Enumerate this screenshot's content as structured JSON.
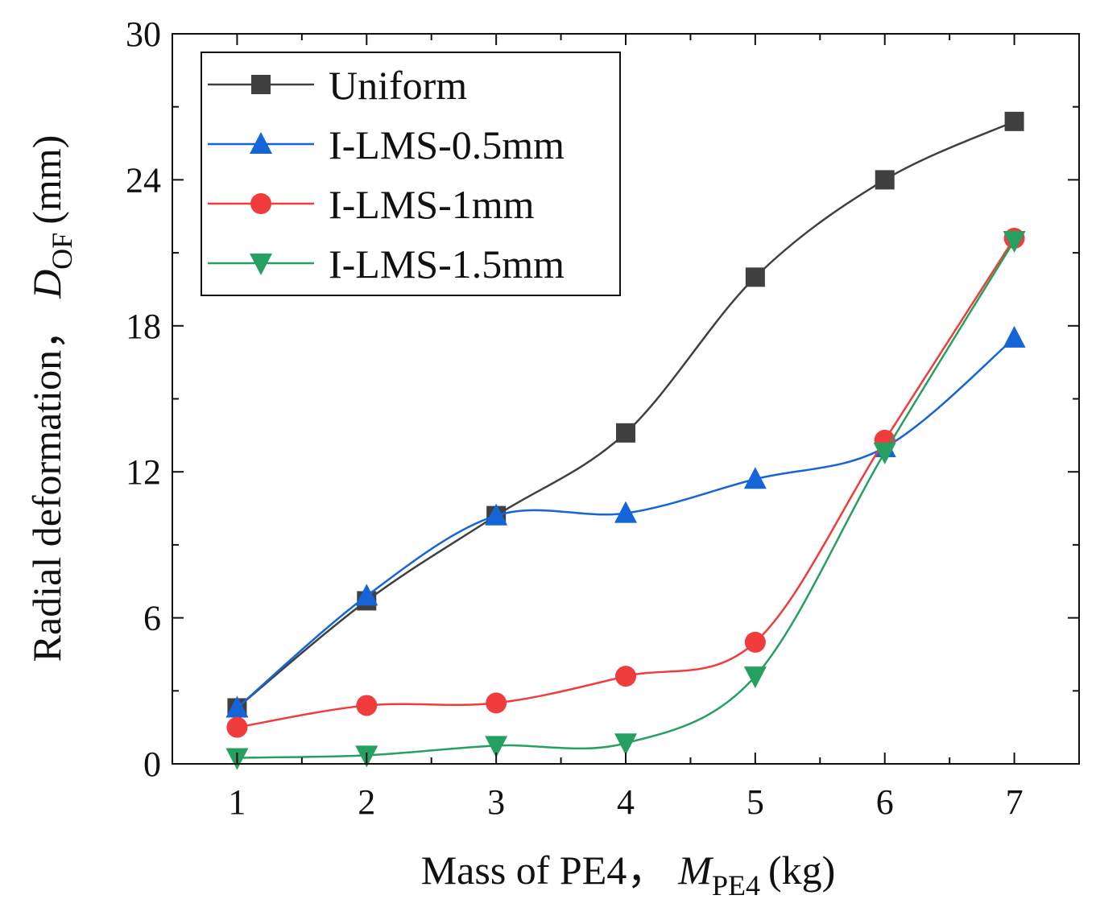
{
  "chart_data": {
    "type": "line",
    "title": "",
    "xlabel": {
      "main": "Mass of PE4，",
      "symbol": "M",
      "subscript": "PE4",
      "unit": "(kg)"
    },
    "ylabel": {
      "main": "Radial deformation，",
      "symbol": "D",
      "subscript": "OF",
      "unit": "(mm)"
    },
    "xlim": [
      0.5,
      7.5
    ],
    "ylim": [
      0,
      30
    ],
    "xticks": [
      1,
      2,
      3,
      4,
      5,
      6,
      7
    ],
    "yticks": [
      0,
      6,
      12,
      18,
      24,
      30
    ],
    "grid": false,
    "legend_position": "top-left",
    "x": [
      1,
      2,
      3,
      4,
      5,
      6,
      7
    ],
    "series": [
      {
        "name": "Uniform",
        "color": "#404040",
        "marker": "square",
        "values": [
          2.3,
          6.7,
          10.2,
          13.6,
          20.0,
          24.0,
          26.4
        ]
      },
      {
        "name": "I-LMS-0.5mm",
        "color": "#1565d8",
        "marker": "triangle-up",
        "values": [
          2.3,
          6.9,
          10.2,
          10.3,
          11.7,
          13.0,
          17.5
        ]
      },
      {
        "name": "I-LMS-1mm",
        "color": "#f03c3c",
        "marker": "circle",
        "values": [
          1.5,
          2.4,
          2.5,
          3.6,
          5.0,
          13.3,
          21.6
        ]
      },
      {
        "name": "I-LMS-1.5mm",
        "color": "#26a060",
        "marker": "triangle-down",
        "values": [
          0.25,
          0.35,
          0.75,
          0.85,
          3.6,
          12.8,
          21.5
        ]
      }
    ]
  }
}
